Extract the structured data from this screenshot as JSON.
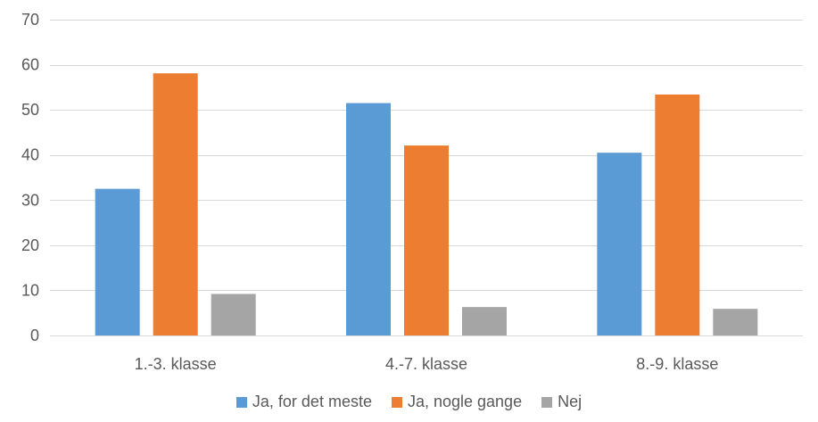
{
  "chart_data": {
    "type": "bar",
    "title": "",
    "xlabel": "",
    "ylabel": "",
    "categories": [
      "1.-3. klasse",
      "4.-7. klasse",
      "8.-9. klasse"
    ],
    "series": [
      {
        "name": "Ja, for det meste",
        "color": "#5B9BD5",
        "values": [
          32.5,
          51.5,
          40.5
        ]
      },
      {
        "name": "Ja, nogle gange",
        "color": "#ED7D31",
        "values": [
          58.1,
          42.1,
          53.4
        ]
      },
      {
        "name": "Nej",
        "color": "#A5A5A5",
        "values": [
          9.2,
          6.3,
          5.9
        ]
      }
    ],
    "ylim": [
      0,
      70
    ],
    "yticks": [
      0,
      10,
      20,
      30,
      40,
      50,
      60,
      70
    ],
    "grid": true,
    "legend_position": "bottom"
  }
}
